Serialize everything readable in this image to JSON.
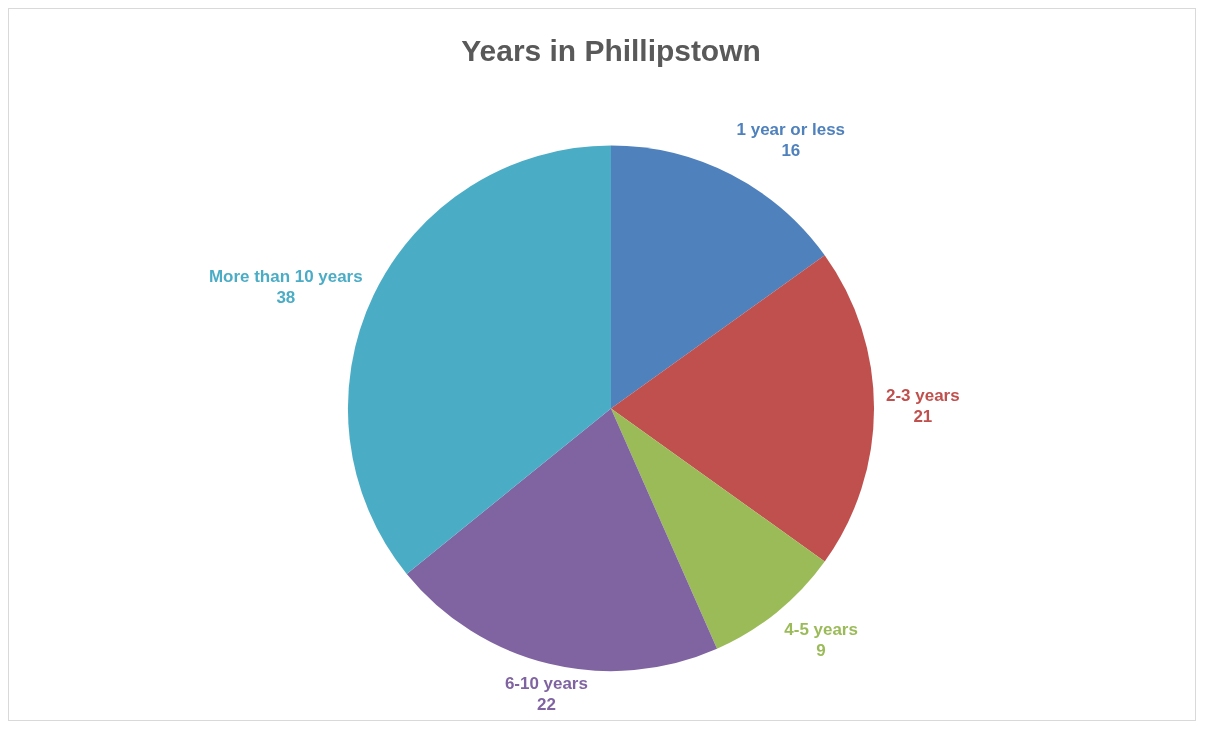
{
  "chart_data": {
    "type": "pie",
    "title": "Years in Phillipstown",
    "categories": [
      "1 year or less",
      "2-3 years",
      "4-5 years",
      "6-10 years",
      "More than 10 years"
    ],
    "values": [
      16,
      21,
      9,
      22,
      38
    ],
    "colors": [
      "#4f81bd",
      "#c0504d",
      "#9bbb59",
      "#8064a2",
      "#4bacc6"
    ],
    "data_labels": true,
    "legend": false
  }
}
